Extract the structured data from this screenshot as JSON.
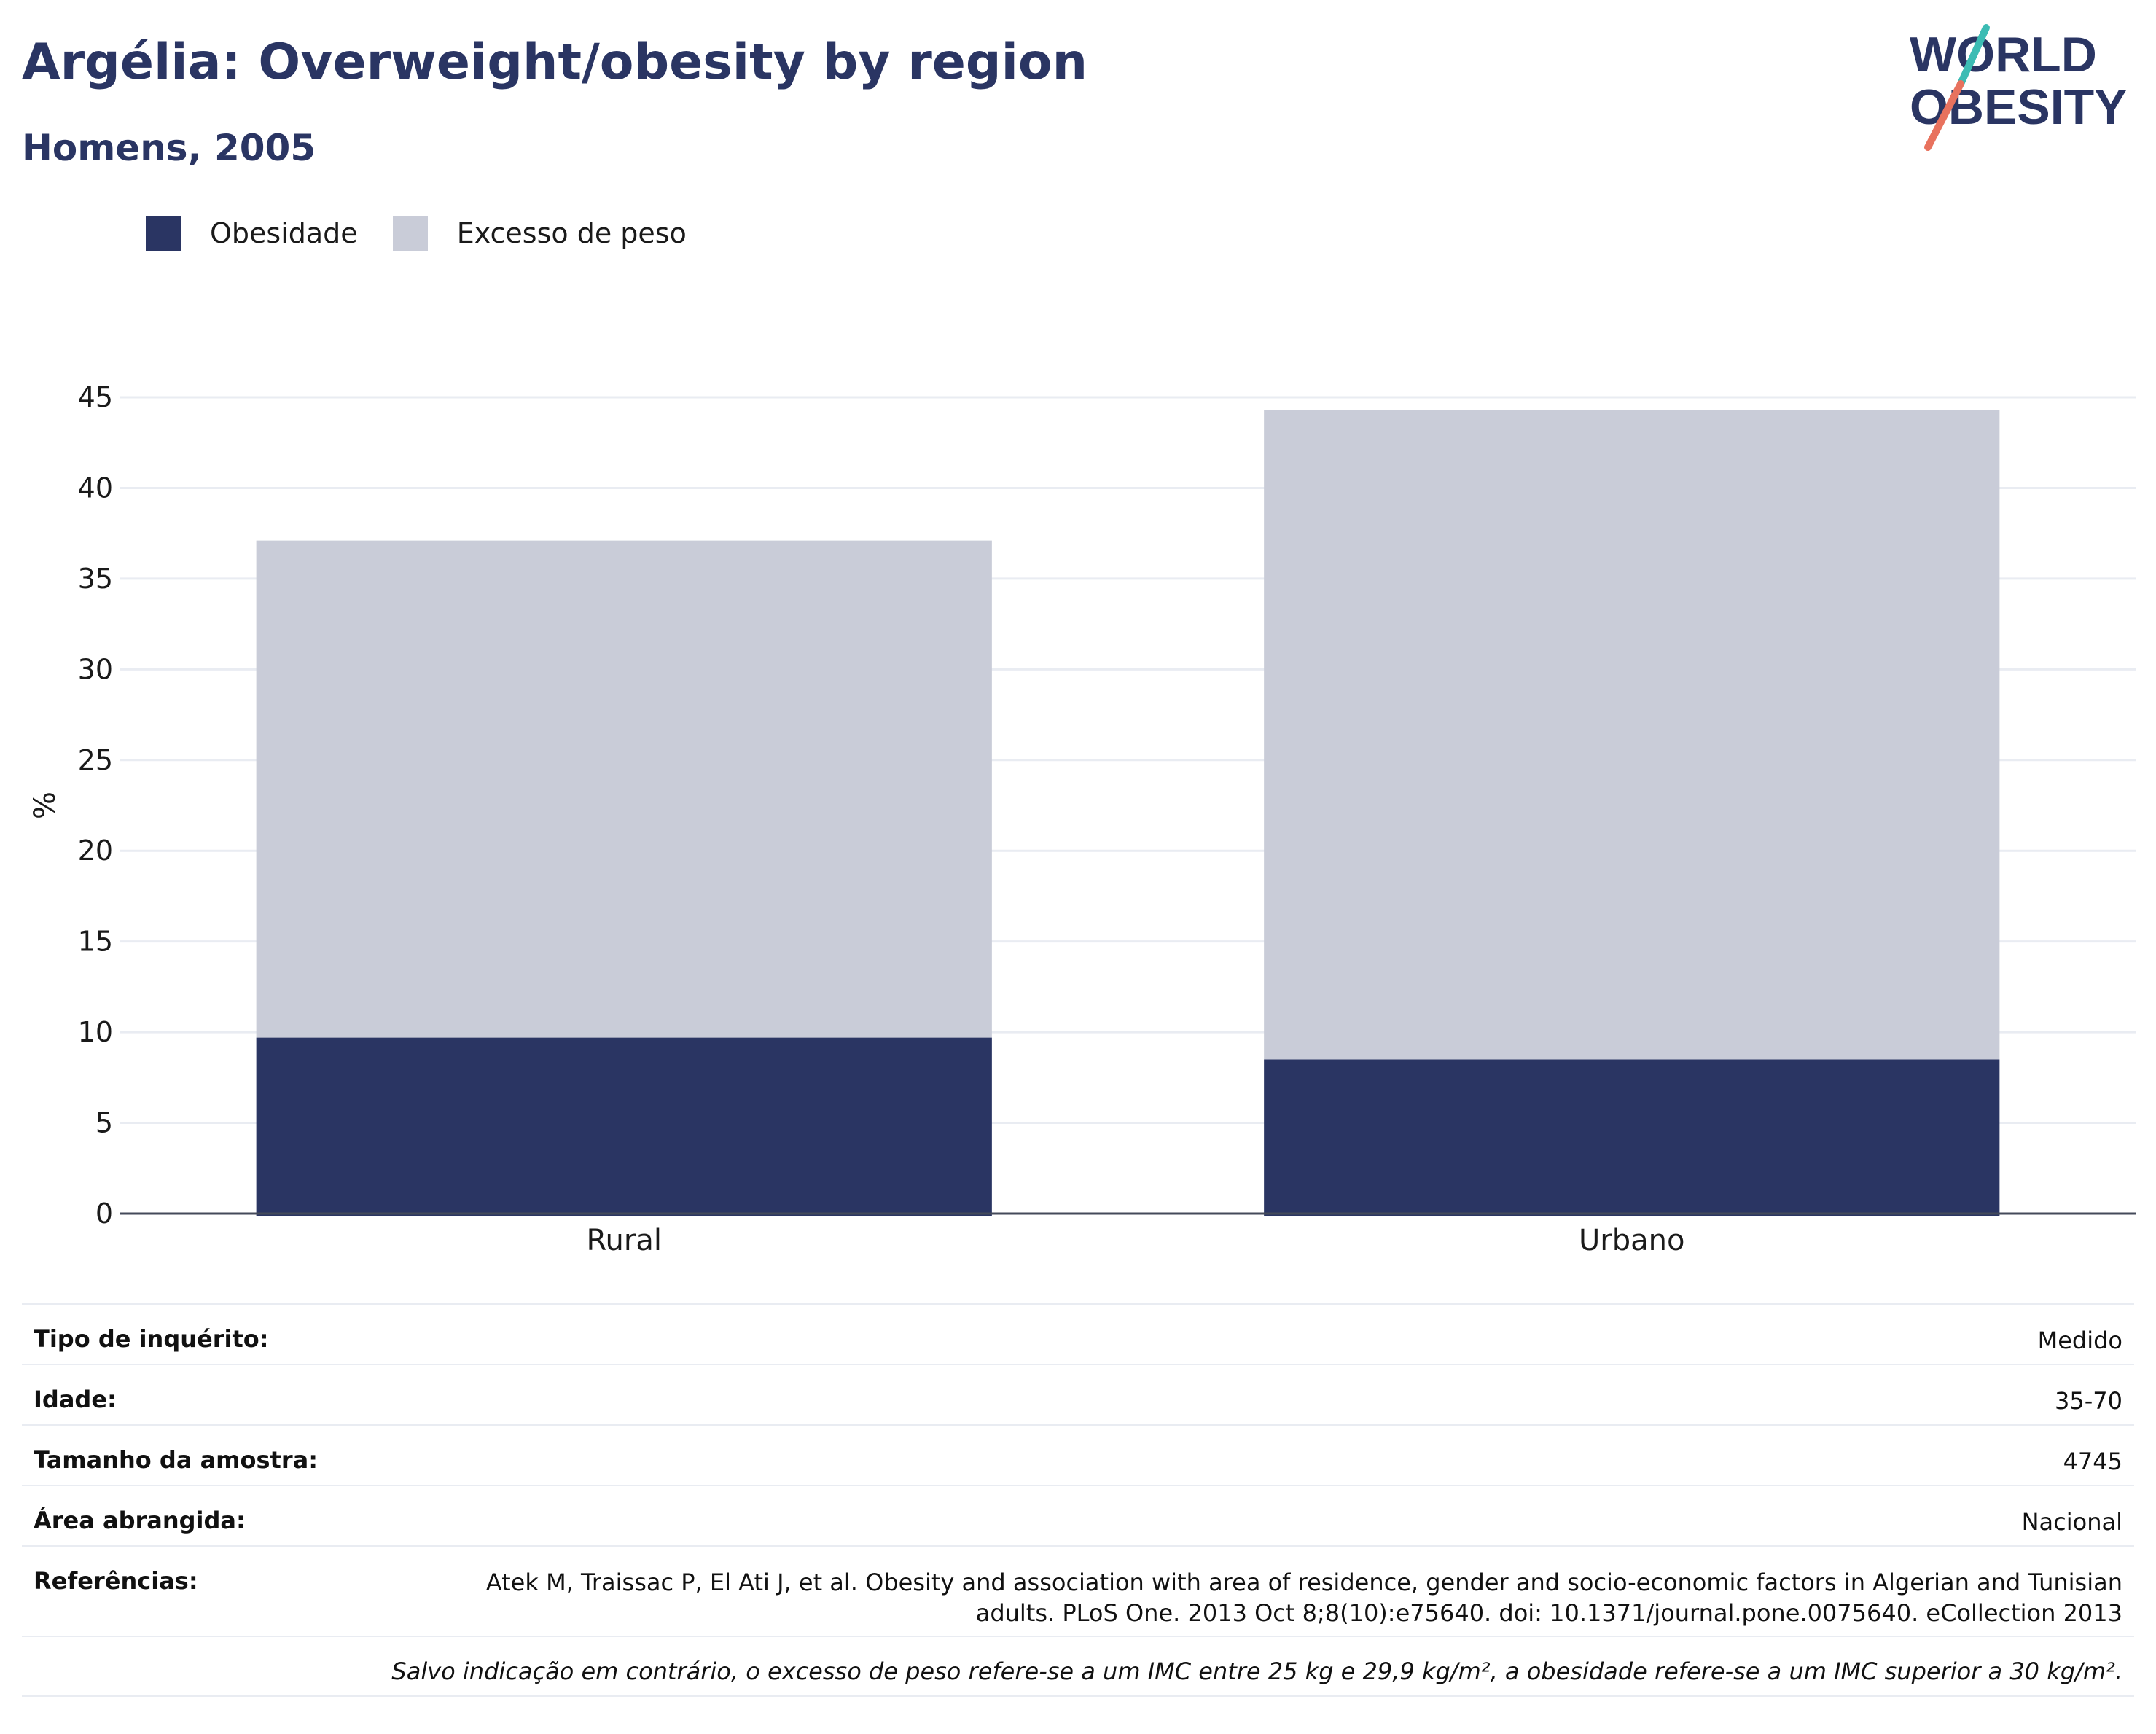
{
  "title": "Argélia: Overweight/obesity by region",
  "subtitle": "Homens, 2005",
  "logo": {
    "line1": "WORLD",
    "line2": "OBESITY"
  },
  "colors": {
    "obesity": "#2a3563",
    "overweight": "#c9ccd8",
    "text": "#2a3563",
    "grid": "#e9ecf2",
    "logo_teal": "#3cbcb4",
    "logo_coral": "#e8725e"
  },
  "legend": [
    {
      "label": "Obesidade",
      "color": "#2a3563"
    },
    {
      "label": "Excesso de peso",
      "color": "#c9ccd8"
    }
  ],
  "chart_data": {
    "type": "bar",
    "stacked": true,
    "categories": [
      "Rural",
      "Urbano"
    ],
    "series": [
      {
        "name": "Obesidade",
        "values": [
          9.7,
          8.5
        ],
        "color": "#2a3563"
      },
      {
        "name": "Excesso de peso",
        "values": [
          27.4,
          35.8
        ],
        "color": "#c9ccd8"
      }
    ],
    "ylabel": "%",
    "ylim": [
      0,
      45
    ],
    "yticks": [
      0,
      5,
      10,
      15,
      20,
      25,
      30,
      35,
      40,
      45
    ],
    "grid": true,
    "legend_position": "top-left"
  },
  "info": {
    "survey_type": {
      "label": "Tipo de inquérito:",
      "value": "Medido"
    },
    "age": {
      "label": "Idade:",
      "value": "35-70"
    },
    "sample_size": {
      "label": "Tamanho da amostra:",
      "value": "4745"
    },
    "area": {
      "label": "Área abrangida:",
      "value": "Nacional"
    },
    "references": {
      "label": "Referências:",
      "value": "Atek M, Traissac P, El Ati J, et al. Obesity and association with area of residence, gender and socio-economic factors in Algerian and Tunisian adults. PLoS One. 2013 Oct 8;8(10):e75640. doi: 10.1371/journal.pone.0075640. eCollection 2013"
    },
    "note": "Salvo indicação em contrário, o excesso de peso refere-se a um IMC entre 25 kg e 29,9 kg/m², a obesidade refere-se a um IMC superior a 30 kg/m²."
  }
}
